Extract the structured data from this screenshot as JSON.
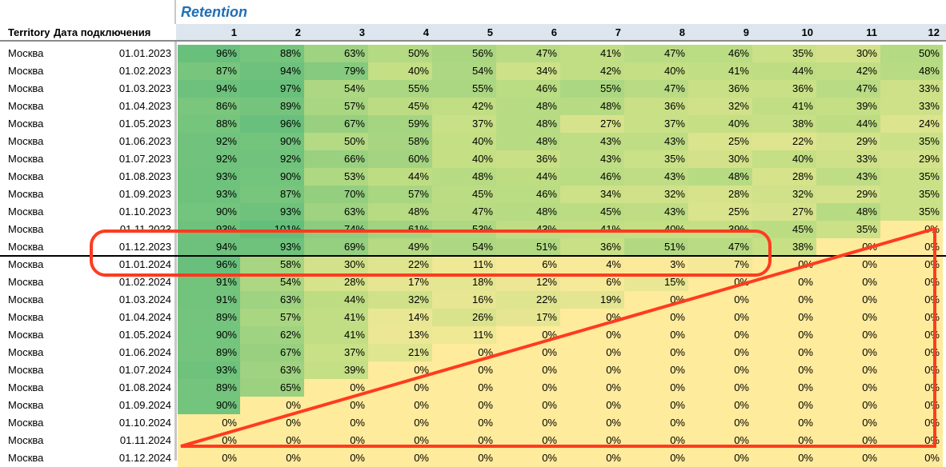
{
  "title": "Retention",
  "headers": {
    "territory": "Territory",
    "date": "Дата подключения",
    "periods": [
      "1",
      "2",
      "3",
      "4",
      "5",
      "6",
      "7",
      "8",
      "9",
      "10",
      "11",
      "12"
    ]
  },
  "rows": [
    {
      "territory": "Москва",
      "date": "01.01.2023",
      "values": [
        "96%",
        "88%",
        "63%",
        "50%",
        "56%",
        "47%",
        "41%",
        "47%",
        "46%",
        "35%",
        "30%",
        "50%"
      ]
    },
    {
      "territory": "Москва",
      "date": "01.02.2023",
      "values": [
        "87%",
        "94%",
        "79%",
        "40%",
        "54%",
        "34%",
        "42%",
        "40%",
        "41%",
        "44%",
        "42%",
        "48%"
      ]
    },
    {
      "territory": "Москва",
      "date": "01.03.2023",
      "values": [
        "94%",
        "97%",
        "54%",
        "55%",
        "55%",
        "46%",
        "55%",
        "47%",
        "36%",
        "36%",
        "47%",
        "33%"
      ]
    },
    {
      "territory": "Москва",
      "date": "01.04.2023",
      "values": [
        "86%",
        "89%",
        "57%",
        "45%",
        "42%",
        "48%",
        "48%",
        "36%",
        "32%",
        "41%",
        "39%",
        "33%"
      ]
    },
    {
      "territory": "Москва",
      "date": "01.05.2023",
      "values": [
        "88%",
        "96%",
        "67%",
        "59%",
        "37%",
        "48%",
        "27%",
        "37%",
        "40%",
        "38%",
        "44%",
        "24%"
      ]
    },
    {
      "territory": "Москва",
      "date": "01.06.2023",
      "values": [
        "92%",
        "90%",
        "50%",
        "58%",
        "40%",
        "48%",
        "43%",
        "43%",
        "25%",
        "22%",
        "29%",
        "35%"
      ]
    },
    {
      "territory": "Москва",
      "date": "01.07.2023",
      "values": [
        "92%",
        "92%",
        "66%",
        "60%",
        "40%",
        "36%",
        "43%",
        "35%",
        "30%",
        "40%",
        "33%",
        "29%"
      ]
    },
    {
      "territory": "Москва",
      "date": "01.08.2023",
      "values": [
        "93%",
        "90%",
        "53%",
        "44%",
        "48%",
        "44%",
        "46%",
        "43%",
        "48%",
        "28%",
        "43%",
        "35%"
      ]
    },
    {
      "territory": "Москва",
      "date": "01.09.2023",
      "values": [
        "93%",
        "87%",
        "70%",
        "57%",
        "45%",
        "46%",
        "34%",
        "32%",
        "28%",
        "32%",
        "29%",
        "35%"
      ]
    },
    {
      "territory": "Москва",
      "date": "01.10.2023",
      "values": [
        "90%",
        "93%",
        "63%",
        "48%",
        "47%",
        "48%",
        "45%",
        "43%",
        "25%",
        "27%",
        "48%",
        "35%"
      ]
    },
    {
      "territory": "Москва",
      "date": "01.11.2023",
      "values": [
        "93%",
        "101%",
        "74%",
        "61%",
        "53%",
        "43%",
        "41%",
        "40%",
        "39%",
        "45%",
        "35%",
        "0%"
      ]
    },
    {
      "territory": "Москва",
      "date": "01.12.2023",
      "values": [
        "94%",
        "93%",
        "69%",
        "49%",
        "54%",
        "51%",
        "36%",
        "51%",
        "47%",
        "38%",
        "0%",
        "0%"
      ]
    },
    {
      "territory": "Москва",
      "date": "01.01.2024",
      "values": [
        "96%",
        "58%",
        "30%",
        "22%",
        "11%",
        "6%",
        "4%",
        "3%",
        "7%",
        "0%",
        "0%",
        "0%"
      ]
    },
    {
      "territory": "Москва",
      "date": "01.02.2024",
      "values": [
        "91%",
        "54%",
        "28%",
        "17%",
        "18%",
        "12%",
        "6%",
        "15%",
        "0%",
        "0%",
        "0%",
        "0%"
      ]
    },
    {
      "territory": "Москва",
      "date": "01.03.2024",
      "values": [
        "91%",
        "63%",
        "44%",
        "32%",
        "16%",
        "22%",
        "19%",
        "0%",
        "0%",
        "0%",
        "0%",
        "0%"
      ]
    },
    {
      "territory": "Москва",
      "date": "01.04.2024",
      "values": [
        "89%",
        "57%",
        "41%",
        "14%",
        "26%",
        "17%",
        "0%",
        "0%",
        "0%",
        "0%",
        "0%",
        "0%"
      ]
    },
    {
      "territory": "Москва",
      "date": "01.05.2024",
      "values": [
        "90%",
        "62%",
        "41%",
        "13%",
        "11%",
        "0%",
        "0%",
        "0%",
        "0%",
        "0%",
        "0%",
        "0%"
      ]
    },
    {
      "territory": "Москва",
      "date": "01.06.2024",
      "values": [
        "89%",
        "67%",
        "37%",
        "21%",
        "0%",
        "0%",
        "0%",
        "0%",
        "0%",
        "0%",
        "0%",
        "0%"
      ]
    },
    {
      "territory": "Москва",
      "date": "01.07.2024",
      "values": [
        "93%",
        "63%",
        "39%",
        "0%",
        "0%",
        "0%",
        "0%",
        "0%",
        "0%",
        "0%",
        "0%",
        "0%"
      ]
    },
    {
      "territory": "Москва",
      "date": "01.08.2024",
      "values": [
        "89%",
        "65%",
        "0%",
        "0%",
        "0%",
        "0%",
        "0%",
        "0%",
        "0%",
        "0%",
        "0%",
        "0%"
      ]
    },
    {
      "territory": "Москва",
      "date": "01.09.2024",
      "values": [
        "90%",
        "0%",
        "0%",
        "0%",
        "0%",
        "0%",
        "0%",
        "0%",
        "0%",
        "0%",
        "0%",
        "0%"
      ]
    },
    {
      "territory": "Москва",
      "date": "01.10.2024",
      "values": [
        "0%",
        "0%",
        "0%",
        "0%",
        "0%",
        "0%",
        "0%",
        "0%",
        "0%",
        "0%",
        "0%",
        "0%"
      ]
    },
    {
      "territory": "Москва",
      "date": "01.11.2024",
      "values": [
        "0%",
        "0%",
        "0%",
        "0%",
        "0%",
        "0%",
        "0%",
        "0%",
        "0%",
        "0%",
        "0%",
        "0%"
      ]
    },
    {
      "territory": "Москва",
      "date": "01.12.2024",
      "values": [
        "0%",
        "0%",
        "0%",
        "0%",
        "0%",
        "0%",
        "0%",
        "0%",
        "0%",
        "0%",
        "0%",
        "0%"
      ]
    }
  ],
  "colors": {
    "title": "#1f6fb5",
    "header_bg": "#dde6ee",
    "annotation": "#ff3b1f",
    "heat_high": "#63be7b",
    "heat_mid": "#c4df84",
    "heat_low": "#ffeb9c"
  }
}
